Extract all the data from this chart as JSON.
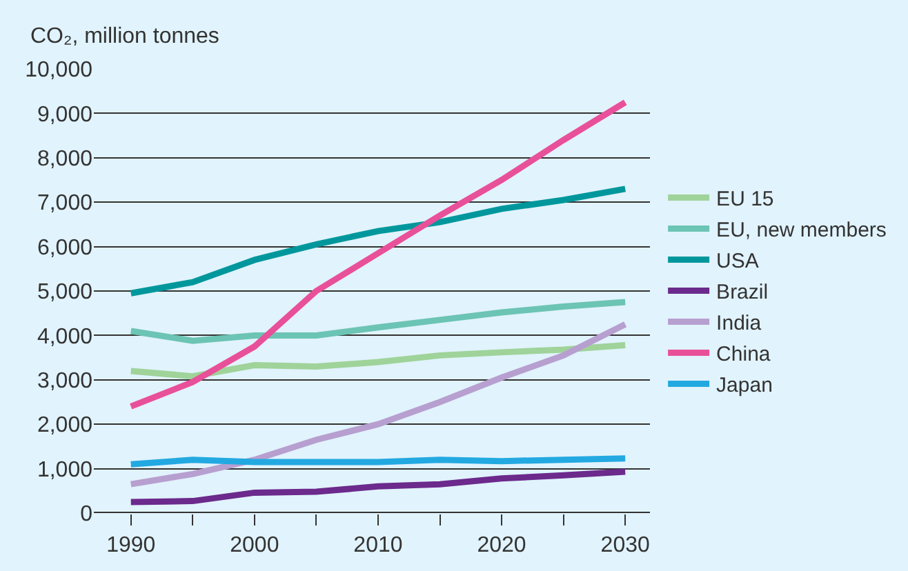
{
  "chart_data": {
    "type": "line",
    "ylabel": "CO₂, million tonnes",
    "x": [
      1990,
      1995,
      2000,
      2005,
      2010,
      2015,
      2020,
      2025,
      2030
    ],
    "series": [
      {
        "name": "EU 15",
        "color": "#9fd39a",
        "values": [
          3200,
          3080,
          3330,
          3300,
          3400,
          3550,
          3620,
          3680,
          3780
        ]
      },
      {
        "name": "EU, new members",
        "color": "#6cc4b4",
        "values": [
          4100,
          3880,
          4000,
          4000,
          4180,
          4350,
          4520,
          4650,
          4750
        ]
      },
      {
        "name": "USA",
        "color": "#00979c",
        "values": [
          4950,
          5200,
          5700,
          6050,
          6350,
          6550,
          6850,
          7050,
          7300
        ]
      },
      {
        "name": "Brazil",
        "color": "#6b2a8c",
        "values": [
          250,
          270,
          460,
          480,
          600,
          650,
          780,
          850,
          930
        ]
      },
      {
        "name": "India",
        "color": "#b79fd0",
        "values": [
          650,
          880,
          1200,
          1650,
          2000,
          2500,
          3050,
          3550,
          4250
        ]
      },
      {
        "name": "China",
        "color": "#e9509a",
        "values": [
          2400,
          2950,
          3750,
          5000,
          5850,
          6700,
          7500,
          8400,
          9250
        ]
      },
      {
        "name": "Japan",
        "color": "#23a9e1",
        "values": [
          1100,
          1200,
          1150,
          1150,
          1150,
          1200,
          1170,
          1200,
          1230
        ]
      }
    ],
    "xlim": [
      1987,
      2032
    ],
    "xticks": [
      1990,
      {
        "value": 1995,
        "label": null
      },
      2000,
      {
        "value": 2005,
        "label": null
      },
      2010,
      {
        "value": 2015,
        "label": null
      },
      2020,
      {
        "value": 2025,
        "label": null
      },
      2030
    ],
    "ylim": [
      0,
      10000
    ],
    "yticks": [
      {
        "value": 0,
        "label": "0"
      },
      {
        "value": 1000,
        "label": "1,000"
      },
      {
        "value": 2000,
        "label": "2,000"
      },
      {
        "value": 3000,
        "label": "3,000"
      },
      {
        "value": 4000,
        "label": "4,000"
      },
      {
        "value": 5000,
        "label": "5,000"
      },
      {
        "value": 6000,
        "label": "6,000"
      },
      {
        "value": 7000,
        "label": "7,000"
      },
      {
        "value": 8000,
        "label": "8,000"
      },
      {
        "value": 9000,
        "label": "9,000"
      },
      {
        "value": 10000,
        "label": "10,000"
      }
    ],
    "grid": "y",
    "legend": "right",
    "marker": "none",
    "line_style": "solid"
  }
}
